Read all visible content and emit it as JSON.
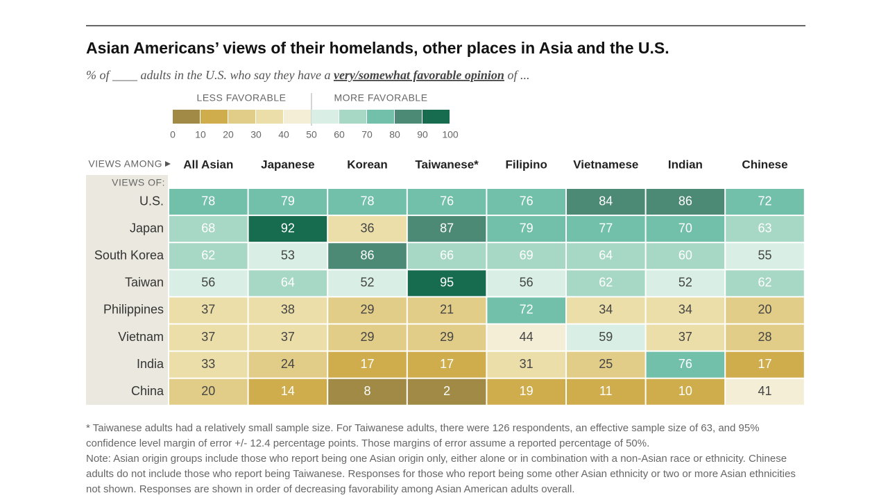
{
  "chart_data": {
    "type": "heatmap",
    "title": "Asian Americans’ views of their homelands, other places in Asia and the U.S.",
    "subtitle": [
      "% of ____ adults in the U.S. who say they have a ",
      "very/somewhat favorable opinion",
      " of ..."
    ],
    "legend": {
      "less_label": "LESS FAVORABLE",
      "more_label": "MORE FAVORABLE",
      "ticks": [
        0,
        10,
        20,
        30,
        40,
        50,
        60,
        70,
        80,
        90,
        100
      ],
      "colors": [
        "#a08a45",
        "#cfad4d",
        "#e2cd88",
        "#ebdea8",
        "#f4eed6",
        "#d9efe6",
        "#a7d7c5",
        "#73c0aa",
        "#4d8a75",
        "#176b4e"
      ]
    },
    "column_header": "VIEWS AMONG",
    "row_header": "VIEWS OF:",
    "categories": [
      "All Asian",
      "Japanese",
      "Korean",
      "Taiwanese*",
      "Filipino",
      "Vietnamese",
      "Indian",
      "Chinese"
    ],
    "rows": [
      "U.S.",
      "Japan",
      "South Korea",
      "Taiwan",
      "Philippines",
      "Vietnam",
      "India",
      "China"
    ],
    "values": [
      [
        78,
        79,
        78,
        76,
        76,
        84,
        86,
        72
      ],
      [
        68,
        92,
        36,
        87,
        79,
        77,
        70,
        63
      ],
      [
        62,
        53,
        86,
        66,
        69,
        64,
        60,
        55
      ],
      [
        56,
        64,
        52,
        95,
        56,
        62,
        52,
        62
      ],
      [
        37,
        38,
        29,
        21,
        72,
        34,
        34,
        20
      ],
      [
        37,
        37,
        29,
        29,
        44,
        59,
        37,
        28
      ],
      [
        33,
        24,
        17,
        17,
        31,
        25,
        76,
        17
      ],
      [
        20,
        14,
        8,
        2,
        19,
        11,
        10,
        41
      ]
    ],
    "notes": [
      "* Taiwanese adults had a relatively small sample size. For Taiwanese adults, there were 126 respondents, an effective sample size of 63, and 95% confidence level margin of error +/- 12.4 percentage points. Those margins of error assume a reported percentage of 50%.",
      "Note: Asian origin groups include those who report being one Asian origin only, either alone or in combination with a non-Asian race or ethnicity. Chinese adults do not include those who report being Taiwanese. Responses for those who report being some other Asian ethnicity or two or more Asian ethnicities not shown. Responses are shown in order of decreasing favorability among Asian American adults overall."
    ]
  }
}
